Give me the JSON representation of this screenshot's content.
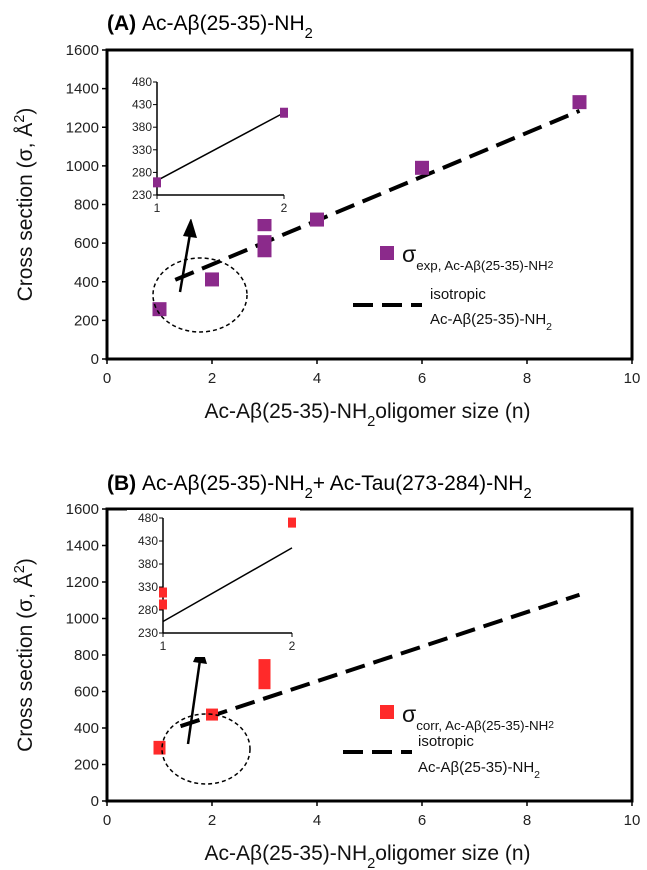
{
  "chart_data": [
    {
      "type": "scatter",
      "panel_label": "(A)",
      "title": "Ac-Aβ(25-35)-NH",
      "title_sub": "2",
      "xlabel": "Ac-Aβ(25-35)-NH",
      "xlabel_sub": "2",
      "xlabel_rest": "oligomer size (n)",
      "ylabel": "Cross section (σ, Å",
      "ylabel_sup": "2",
      "ylabel_end": ")",
      "xlim": [
        0,
        10
      ],
      "ylim": [
        0,
        1600
      ],
      "xticks": [
        "0",
        "2",
        "4",
        "6",
        "8",
        "10"
      ],
      "yticks": [
        "0",
        "200",
        "400",
        "600",
        "800",
        "1000",
        "1200",
        "1400",
        "1600"
      ],
      "marker_color": "#8b2a8b",
      "series": [
        {
          "name": "σexp, Ac-Aβ(25-35)-NH2",
          "legend_symbol": "σ",
          "legend_sub": "exp, Ac-Aβ(25-35)-NH",
          "legend_sub2": "2",
          "points": [
            {
              "x": 1,
              "y": 258,
              "h": 0
            },
            {
              "x": 2,
              "y": 412,
              "h": 0
            },
            {
              "x": 3,
              "y": 563,
              "h": 0
            },
            {
              "x": 3,
              "y": 605,
              "h": 0
            },
            {
              "x": 3,
              "y": 698,
              "h": 0
            },
            {
              "x": 4,
              "y": 722,
              "h": 0
            },
            {
              "x": 6,
              "y": 990,
              "h": 0
            },
            {
              "x": 9,
              "y": 1330,
              "h": 0
            }
          ]
        },
        {
          "name": "isotropic Ac-Aβ(25-35)-NH2",
          "legend_line1": "isotropic",
          "legend_line2": "Ac-Aβ(25-35)-NH",
          "legend_line2_sub": "2",
          "line": [
            {
              "x": 1.3,
              "y": 410
            },
            {
              "x": 9,
              "y": 1285
            }
          ]
        }
      ],
      "inset": {
        "xlim": [
          1,
          2
        ],
        "ylim": [
          230,
          480
        ],
        "xticks": [
          "1",
          "2"
        ],
        "yticks": [
          "230",
          "280",
          "330",
          "380",
          "430",
          "480"
        ],
        "points": [
          {
            "x": 1,
            "y": 258,
            "h": 0
          },
          {
            "x": 2,
            "y": 412,
            "h": 0
          }
        ],
        "line": [
          {
            "x": 1,
            "y": 262
          },
          {
            "x": 2,
            "y": 412
          }
        ]
      }
    },
    {
      "type": "scatter",
      "panel_label": "(B)",
      "title": "Ac-Aβ(25-35)-NH",
      "title_sub": "2",
      "title_rest": "+ Ac-Tau(273-284)-NH",
      "title_rest_sub": "2",
      "xlabel": "Ac-Aβ(25-35)-NH",
      "xlabel_sub": "2",
      "xlabel_rest": "oligomer size (n)",
      "ylabel": "Cross section (σ, Å",
      "ylabel_sup": "2",
      "ylabel_end": ")",
      "xlim": [
        0,
        10
      ],
      "ylim": [
        0,
        1600
      ],
      "xticks": [
        "0",
        "2",
        "4",
        "6",
        "8",
        "10"
      ],
      "yticks": [
        "0",
        "200",
        "400",
        "600",
        "800",
        "1000",
        "1200",
        "1400",
        "1600"
      ],
      "marker_color": "#ff2a2a",
      "series": [
        {
          "name": "σcorr, Ac-Aβ(25-35)-NH2",
          "legend_symbol": "σ",
          "legend_sub": "corr, Ac-Aβ(25-35)-NH",
          "legend_sub2": "2",
          "points": [
            {
              "x": 1,
              "y": 292,
              "h": 75
            },
            {
              "x": 2,
              "y": 484,
              "h": 45
            },
            {
              "x": 3,
              "y": 695,
              "h": 165
            }
          ]
        },
        {
          "name": "isotropic Ac-Aβ(25-35)-NH2",
          "legend_line1": "isotropic",
          "legend_line2": "Ac-Aβ(25-35)-NH",
          "legend_line2_sub": "2",
          "line": [
            {
              "x": 1.4,
              "y": 410
            },
            {
              "x": 9,
              "y": 1130
            }
          ]
        }
      ],
      "inset": {
        "xlim": [
          1,
          2
        ],
        "ylim": [
          230,
          480
        ],
        "xticks": [
          "1",
          "2"
        ],
        "yticks": [
          "230",
          "280",
          "330",
          "380",
          "430",
          "480"
        ],
        "points": [
          {
            "x": 1,
            "y": 292,
            "h": 0
          },
          {
            "x": 1,
            "y": 318,
            "h": 0
          },
          {
            "x": 2,
            "y": 470,
            "h": 0
          }
        ],
        "line": [
          {
            "x": 1,
            "y": 255
          },
          {
            "x": 2,
            "y": 415
          }
        ]
      }
    }
  ]
}
